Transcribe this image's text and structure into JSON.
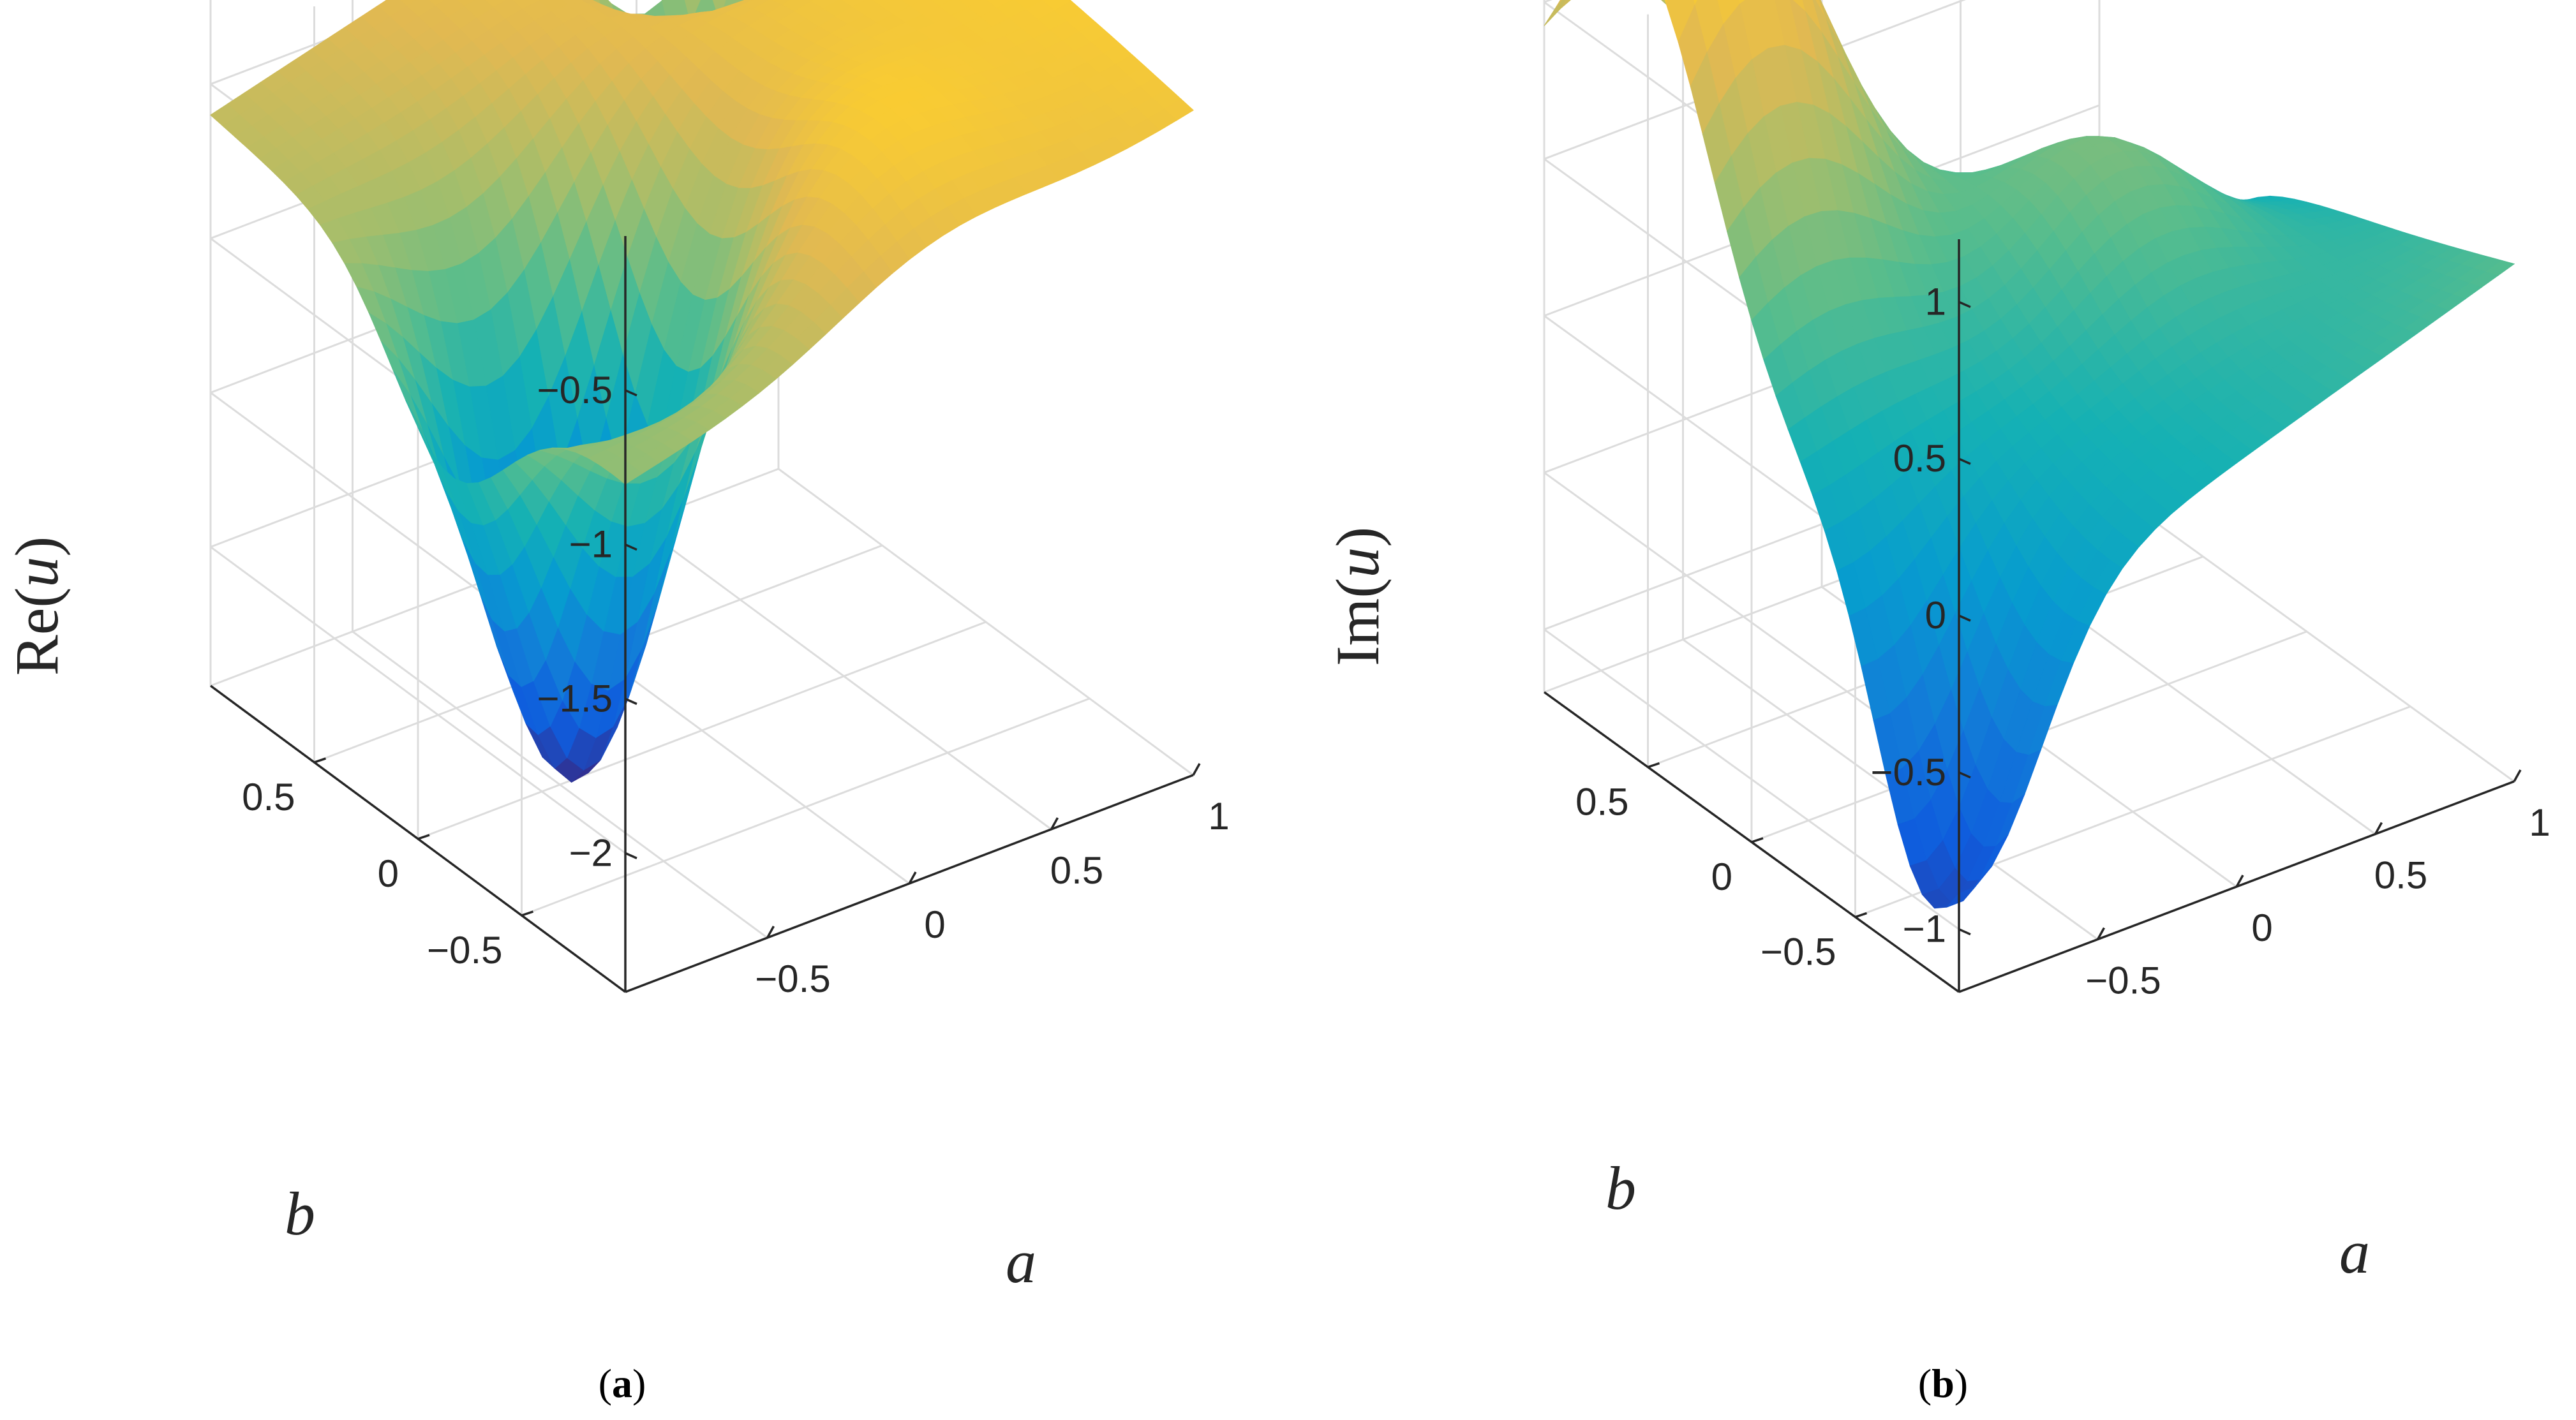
{
  "chart_data": [
    {
      "type": "surface",
      "panel": "a",
      "caption_letter": "a",
      "zlabel_func": "Re(",
      "zlabel_var": "u",
      "zlabel_close": ")",
      "xlabel": "a",
      "ylabel": "b",
      "xlim": [
        -1,
        1
      ],
      "ylim": [
        -1,
        1
      ],
      "zlim": [
        -2.45,
        0.0
      ],
      "x_ticks": [
        {
          "v": -0.5,
          "label": "−0.5"
        },
        {
          "v": 0,
          "label": "0"
        },
        {
          "v": 0.5,
          "label": "0.5"
        },
        {
          "v": 1,
          "label": "1"
        }
      ],
      "y_ticks": [
        {
          "v": -0.5,
          "label": "−0.5"
        },
        {
          "v": 0,
          "label": "0"
        },
        {
          "v": 0.5,
          "label": "0.5"
        }
      ],
      "z_ticks": [
        {
          "v": -0.5,
          "label": "−0.5"
        },
        {
          "v": -1,
          "label": "−1"
        },
        {
          "v": -1.5,
          "label": "−1.5"
        },
        {
          "v": -2,
          "label": "−2"
        }
      ],
      "z_range_observed": [
        -2.2,
        -0.05
      ],
      "colormap": "parula"
    },
    {
      "type": "surface",
      "panel": "b",
      "caption_letter": "b",
      "zlabel_func": "Im(",
      "zlabel_var": "u",
      "zlabel_close": ")",
      "xlabel": "a",
      "ylabel": "b",
      "xlim": [
        -1,
        1
      ],
      "ylim": [
        -1,
        1
      ],
      "zlim": [
        -1.2,
        1.2
      ],
      "x_ticks": [
        {
          "v": -0.5,
          "label": "−0.5"
        },
        {
          "v": 0,
          "label": "0"
        },
        {
          "v": 0.5,
          "label": "0.5"
        },
        {
          "v": 1,
          "label": "1"
        }
      ],
      "y_ticks": [
        {
          "v": -0.5,
          "label": "−0.5"
        },
        {
          "v": 0,
          "label": "0"
        },
        {
          "v": 0.5,
          "label": "0.5"
        }
      ],
      "z_ticks": [
        {
          "v": 1,
          "label": "1"
        },
        {
          "v": 0.5,
          "label": "0.5"
        },
        {
          "v": 0,
          "label": "0"
        },
        {
          "v": -0.5,
          "label": "−0.5"
        },
        {
          "v": -1,
          "label": "−1"
        }
      ],
      "z_range_observed": [
        -1.05,
        1.65
      ],
      "colormap": "parula"
    }
  ]
}
